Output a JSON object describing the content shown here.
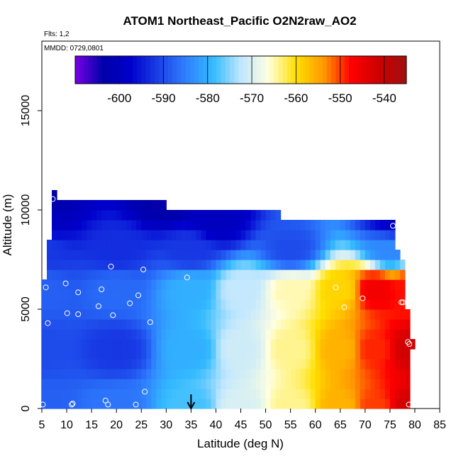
{
  "chart_data": {
    "type": "heatmap",
    "title": "ATOM1 Northeast_Pacific O2N2raw_AO2",
    "annotations": {
      "flights": "Flts: 1,2",
      "dates": "MMDD: 0729,0801"
    },
    "xlabel": "Latitude (deg N)",
    "ylabel": "Altitude (m)",
    "xlim": [
      5,
      85
    ],
    "ylim": [
      0,
      18500
    ],
    "xticks": [
      "5",
      "10",
      "15",
      "20",
      "25",
      "30",
      "35",
      "40",
      "45",
      "50",
      "55",
      "60",
      "65",
      "70",
      "75",
      "80",
      "85"
    ],
    "yticks": [
      "0",
      "5000",
      "10000",
      "15000"
    ],
    "colorbar": {
      "range": [
        -610,
        -535
      ],
      "ticks": [
        "-600",
        "-590",
        "-580",
        "-570",
        "-560",
        "-550",
        "-540"
      ],
      "colors": [
        "#7a00e6",
        "#0000aa",
        "#0000cc",
        "#1a3fe6",
        "#2f7fff",
        "#33bbff",
        "#bfe6ff",
        "#ffffe0",
        "#ffe000",
        "#ff9900",
        "#ff0000",
        "#cc0000",
        "#a01010"
      ]
    },
    "grid": false,
    "legend": "colorbar top",
    "value_field_nodes": [
      {
        "lat": 5,
        "alt": 0,
        "value": -588
      },
      {
        "lat": 20,
        "alt": 0,
        "value": -586
      },
      {
        "lat": 35,
        "alt": 0,
        "value": -578
      },
      {
        "lat": 45,
        "alt": 0,
        "value": -570
      },
      {
        "lat": 55,
        "alt": 0,
        "value": -564
      },
      {
        "lat": 65,
        "alt": 0,
        "value": -556
      },
      {
        "lat": 72,
        "alt": 0,
        "value": -550
      },
      {
        "lat": 79,
        "alt": 0,
        "value": -542
      },
      {
        "lat": 5,
        "alt": 3000,
        "value": -590
      },
      {
        "lat": 20,
        "alt": 3000,
        "value": -592
      },
      {
        "lat": 35,
        "alt": 3000,
        "value": -580
      },
      {
        "lat": 45,
        "alt": 3000,
        "value": -571
      },
      {
        "lat": 55,
        "alt": 3000,
        "value": -564
      },
      {
        "lat": 65,
        "alt": 3000,
        "value": -556
      },
      {
        "lat": 72,
        "alt": 3000,
        "value": -549
      },
      {
        "lat": 79,
        "alt": 3000,
        "value": -542
      },
      {
        "lat": 5,
        "alt": 6000,
        "value": -588
      },
      {
        "lat": 20,
        "alt": 6000,
        "value": -587
      },
      {
        "lat": 35,
        "alt": 6000,
        "value": -580
      },
      {
        "lat": 45,
        "alt": 6000,
        "value": -572
      },
      {
        "lat": 55,
        "alt": 6000,
        "value": -565
      },
      {
        "lat": 65,
        "alt": 6000,
        "value": -559
      },
      {
        "lat": 72,
        "alt": 6000,
        "value": -546
      },
      {
        "lat": 79,
        "alt": 6000,
        "value": -548
      },
      {
        "lat": 5,
        "alt": 8000,
        "value": -592
      },
      {
        "lat": 20,
        "alt": 8000,
        "value": -593
      },
      {
        "lat": 35,
        "alt": 8000,
        "value": -592
      },
      {
        "lat": 55,
        "alt": 8000,
        "value": -590
      },
      {
        "lat": 75,
        "alt": 8000,
        "value": -584
      },
      {
        "lat": 5,
        "alt": 9500,
        "value": -600
      },
      {
        "lat": 40,
        "alt": 9500,
        "value": -600
      },
      {
        "lat": 76,
        "alt": 9500,
        "value": -598
      },
      {
        "lat": 5,
        "alt": 10500,
        "value": -604
      },
      {
        "lat": 30,
        "alt": 10500,
        "value": -604
      }
    ],
    "coverage": [
      {
        "lat_from": 5,
        "lat_to": 7,
        "alt_from": 0,
        "alt_to": 6400
      },
      {
        "lat_from": 6,
        "lat_to": 7,
        "alt_from": 0,
        "alt_to": 8500
      },
      {
        "lat_from": 7,
        "lat_to": 77,
        "alt_from": 0,
        "alt_to": 7600
      },
      {
        "lat_from": 7,
        "lat_to": 76,
        "alt_from": 7600,
        "alt_to": 8000
      },
      {
        "lat_from": 7,
        "lat_to": 77,
        "alt_from": 7600,
        "alt_to": 8000
      },
      {
        "lat_from": 7,
        "lat_to": 76,
        "alt_from": 8000,
        "alt_to": 9500
      },
      {
        "lat_from": 7,
        "lat_to": 53,
        "alt_from": 9500,
        "alt_to": 10000
      },
      {
        "lat_from": 7,
        "lat_to": 30,
        "alt_from": 10000,
        "alt_to": 10500
      },
      {
        "lat_from": 7,
        "lat_to": 8,
        "alt_from": 10500,
        "alt_to": 11000
      },
      {
        "lat_from": 77,
        "lat_to": 78,
        "alt_from": 0,
        "alt_to": 7500
      },
      {
        "lat_from": 78,
        "lat_to": 79,
        "alt_from": 0,
        "alt_to": 5000
      },
      {
        "lat_from": 79,
        "lat_to": 80,
        "alt_from": 3000,
        "alt_to": 3500
      }
    ],
    "sample_points": [
      {
        "lat": 5.2,
        "alt": 200
      },
      {
        "lat": 5.8,
        "alt": 6100
      },
      {
        "lat": 6.2,
        "alt": 4300
      },
      {
        "lat": 7.2,
        "alt": 10550
      },
      {
        "lat": 9.8,
        "alt": 6300
      },
      {
        "lat": 10.1,
        "alt": 4800
      },
      {
        "lat": 11.0,
        "alt": 200
      },
      {
        "lat": 11.2,
        "alt": 250
      },
      {
        "lat": 12.3,
        "alt": 5850
      },
      {
        "lat": 12.3,
        "alt": 4750
      },
      {
        "lat": 16.4,
        "alt": 5150
      },
      {
        "lat": 17.0,
        "alt": 6000
      },
      {
        "lat": 17.8,
        "alt": 400
      },
      {
        "lat": 18.3,
        "alt": 200
      },
      {
        "lat": 18.9,
        "alt": 7150
      },
      {
        "lat": 19.3,
        "alt": 4700
      },
      {
        "lat": 22.7,
        "alt": 5300
      },
      {
        "lat": 23.9,
        "alt": 200
      },
      {
        "lat": 24.4,
        "alt": 5700
      },
      {
        "lat": 25.4,
        "alt": 7000
      },
      {
        "lat": 25.7,
        "alt": 850
      },
      {
        "lat": 26.8,
        "alt": 4350
      },
      {
        "lat": 34.2,
        "alt": 6600
      },
      {
        "lat": 64.1,
        "alt": 6100
      },
      {
        "lat": 65.8,
        "alt": 5100
      },
      {
        "lat": 69.5,
        "alt": 5550
      },
      {
        "lat": 75.6,
        "alt": 9200
      },
      {
        "lat": 77.3,
        "alt": 5350
      },
      {
        "lat": 77.6,
        "alt": 5350
      },
      {
        "lat": 78.6,
        "alt": 3350
      },
      {
        "lat": 78.9,
        "alt": 3250
      },
      {
        "lat": 78.8,
        "alt": 200
      }
    ],
    "marker_arrow_lat": 35
  }
}
